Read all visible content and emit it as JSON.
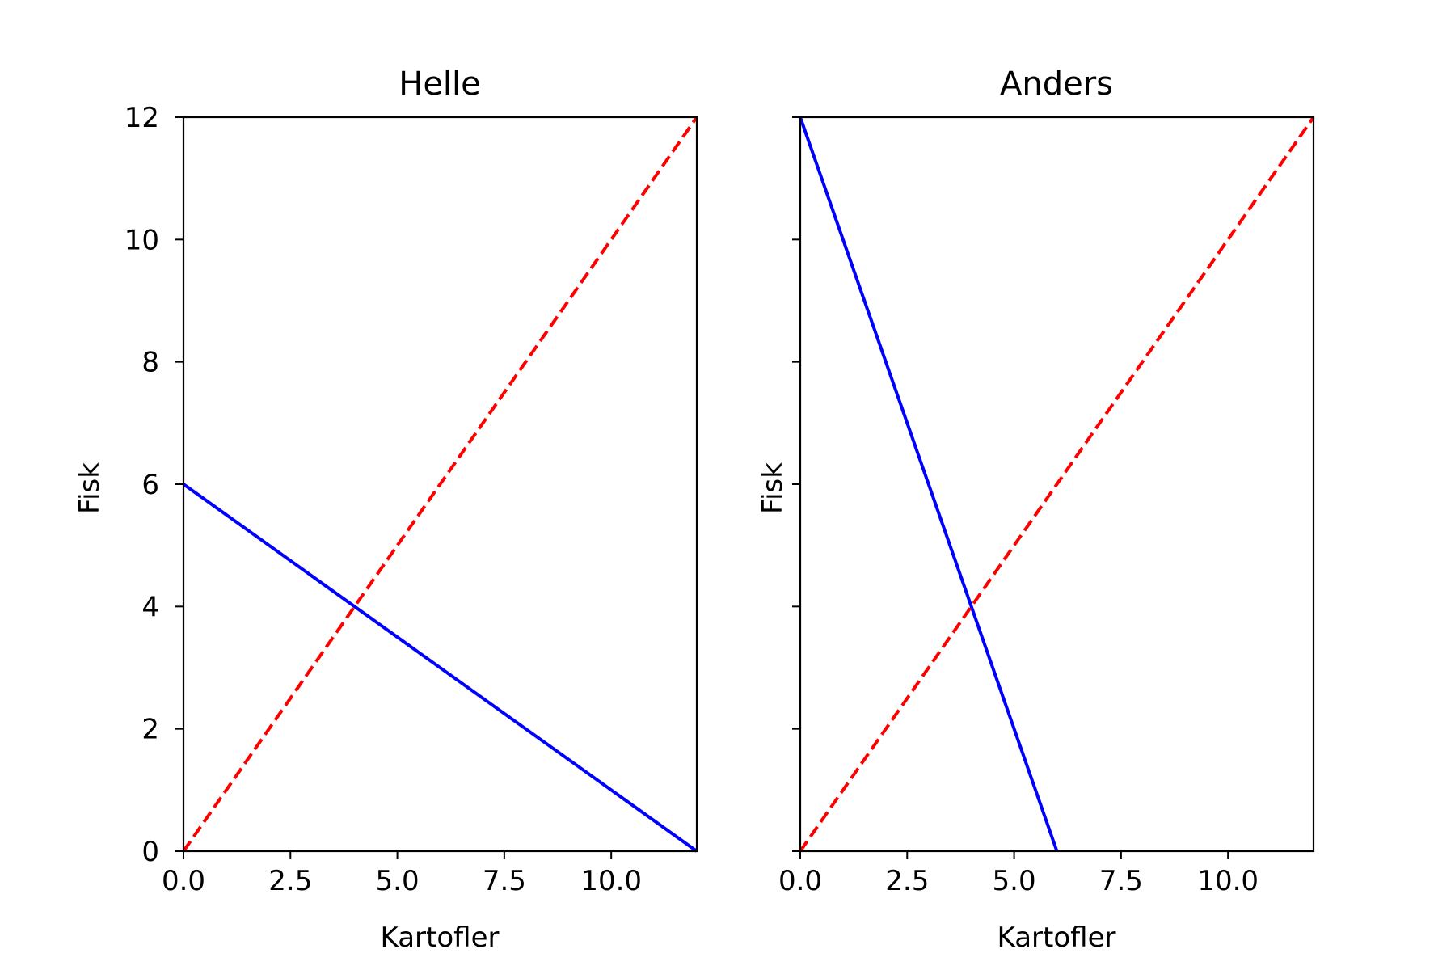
{
  "chart_data": [
    {
      "type": "line",
      "title": "Helle",
      "xlabel": "Kartofler",
      "ylabel": "Fisk",
      "xlim": [
        0,
        12
      ],
      "ylim": [
        0,
        12
      ],
      "xticks": [
        "0.0",
        "2.5",
        "5.0",
        "7.5",
        "10.0"
      ],
      "yticks": [
        "0",
        "2",
        "4",
        "6",
        "8",
        "10",
        "12"
      ],
      "show_yticklabels": true,
      "grid": false,
      "series": [
        {
          "x": [
            0,
            12
          ],
          "y": [
            6,
            0
          ],
          "color": "#0000ff",
          "style": "solid"
        },
        {
          "x": [
            0,
            12
          ],
          "y": [
            0,
            12
          ],
          "color": "#ff0000",
          "style": "dashed"
        }
      ]
    },
    {
      "type": "line",
      "title": "Anders",
      "xlabel": "Kartofler",
      "ylabel": "Fisk",
      "xlim": [
        0,
        12
      ],
      "ylim": [
        0,
        12
      ],
      "xticks": [
        "0.0",
        "2.5",
        "5.0",
        "7.5",
        "10.0"
      ],
      "yticks": [
        "0",
        "2",
        "4",
        "6",
        "8",
        "10",
        "12"
      ],
      "show_yticklabels": false,
      "grid": false,
      "series": [
        {
          "x": [
            0,
            6
          ],
          "y": [
            12,
            0
          ],
          "color": "#0000ff",
          "style": "solid"
        },
        {
          "x": [
            0,
            12
          ],
          "y": [
            0,
            12
          ],
          "color": "#ff0000",
          "style": "dashed"
        }
      ]
    }
  ]
}
